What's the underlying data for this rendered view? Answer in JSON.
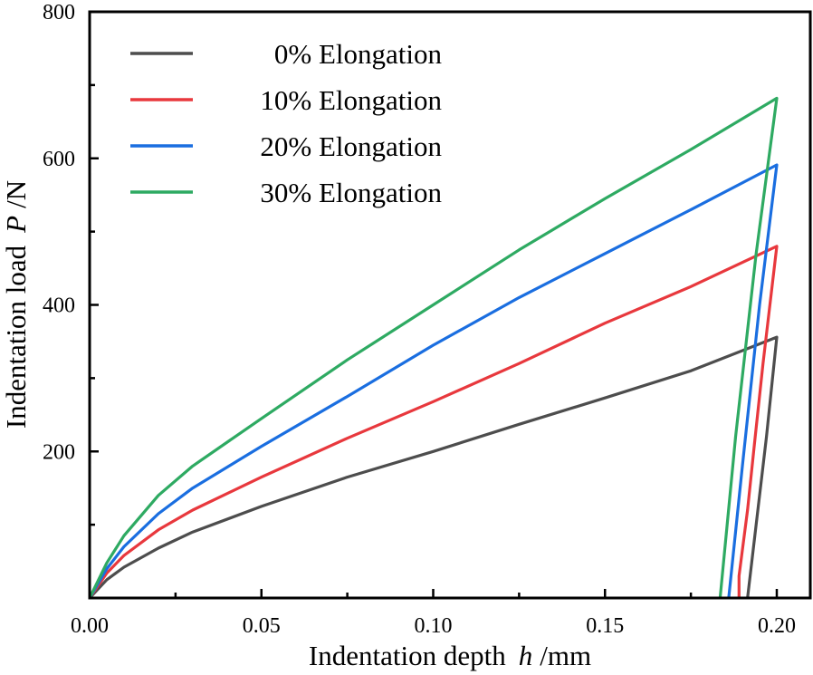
{
  "chart_data": {
    "type": "line",
    "title": "",
    "xlabel": "Indentation depth",
    "xlabel_symbol": "h",
    "xlabel_unit": "/mm",
    "ylabel": "Indentation load",
    "ylabel_symbol": "P",
    "ylabel_unit": "/N",
    "xlim": [
      0,
      0.21
    ],
    "ylim": [
      0,
      800
    ],
    "x_ticks": [
      0.0,
      0.05,
      0.1,
      0.15,
      0.2
    ],
    "x_tick_labels": [
      "0.00",
      "0.05",
      "0.10",
      "0.15",
      "0.20"
    ],
    "x_minor_ticks": [
      0.025,
      0.075,
      0.125,
      0.175
    ],
    "y_ticks": [
      200,
      400,
      600,
      800
    ],
    "y_tick_labels": [
      "200",
      "400",
      "600",
      "800"
    ],
    "y_minor_ticks": [
      100,
      300,
      500,
      700
    ],
    "grid": false,
    "legend_position": "top-left",
    "series": [
      {
        "name": "0% Elongation",
        "color": "#4d4d4d",
        "loading": {
          "x": [
            0,
            0.005,
            0.01,
            0.02,
            0.03,
            0.05,
            0.075,
            0.1,
            0.125,
            0.15,
            0.175,
            0.2
          ],
          "y": [
            0,
            25,
            42,
            68,
            90,
            125,
            165,
            200,
            237,
            273,
            310,
            356
          ]
        },
        "unloading": {
          "x": [
            0.2,
            0.197,
            0.194,
            0.1915
          ],
          "y": [
            356,
            220,
            100,
            0
          ]
        }
      },
      {
        "name": "10% Elongation",
        "color": "#e8383d",
        "loading": {
          "x": [
            0,
            0.005,
            0.01,
            0.02,
            0.03,
            0.05,
            0.075,
            0.1,
            0.125,
            0.15,
            0.175,
            0.2
          ],
          "y": [
            0,
            34,
            58,
            93,
            120,
            165,
            218,
            268,
            320,
            375,
            425,
            480
          ]
        },
        "unloading": {
          "x": [
            0.2,
            0.196,
            0.1935,
            0.1915,
            0.189,
            0.189
          ],
          "y": [
            480,
            320,
            210,
            120,
            30,
            0
          ]
        }
      },
      {
        "name": "20% Elongation",
        "color": "#1a6ee0",
        "loading": {
          "x": [
            0,
            0.005,
            0.01,
            0.02,
            0.03,
            0.05,
            0.075,
            0.1,
            0.125,
            0.15,
            0.175,
            0.2
          ],
          "y": [
            0,
            40,
            70,
            115,
            150,
            207,
            275,
            345,
            410,
            470,
            530,
            591
          ]
        },
        "unloading": {
          "x": [
            0.2,
            0.195,
            0.19,
            0.186
          ],
          "y": [
            591,
            400,
            180,
            0
          ]
        }
      },
      {
        "name": "30% Elongation",
        "color": "#2eaa62",
        "loading": {
          "x": [
            0,
            0.005,
            0.01,
            0.02,
            0.03,
            0.05,
            0.075,
            0.1,
            0.125,
            0.15,
            0.175,
            0.2
          ],
          "y": [
            0,
            48,
            85,
            140,
            180,
            245,
            325,
            400,
            475,
            545,
            612,
            682
          ]
        },
        "unloading": {
          "x": [
            0.2,
            0.194,
            0.188,
            0.1835
          ],
          "y": [
            682,
            470,
            220,
            0
          ]
        }
      }
    ]
  }
}
